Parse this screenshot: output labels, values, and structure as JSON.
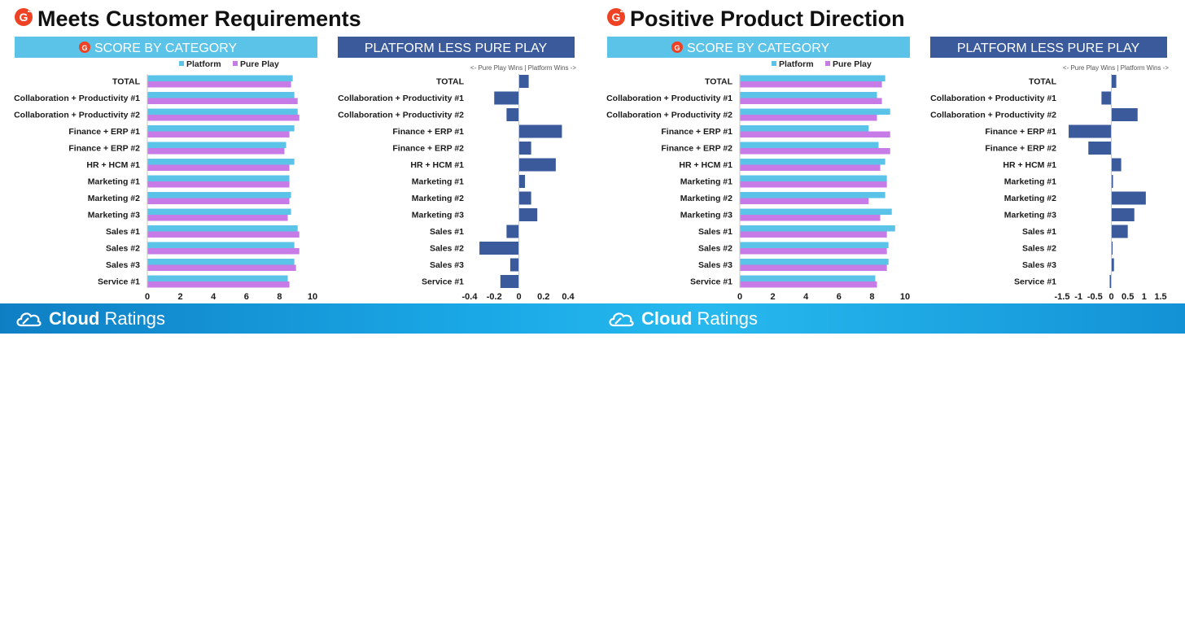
{
  "footer": {
    "brand_bold": "Cloud",
    "brand_rest": " Ratings"
  },
  "colors": {
    "platform": "#5bc3e8",
    "pure_play": "#c77be6",
    "diff": "#3a5a9c",
    "score_header": "#5bc3e8",
    "diff_header": "#3a5a9c",
    "logo": "#ef4123"
  },
  "panels": [
    {
      "title": "Meets Customer Requirements",
      "logo_glyph": "G",
      "logo_sup": "2",
      "score_header": "SCORE BY CATEGORY",
      "diff_header": "PLATFORM LESS PURE PLAY",
      "diff_note": "<- Pure Play Wins | Platform Wins ->"
    },
    {
      "title": "Positive Product Direction",
      "logo_glyph": "G",
      "logo_sup": "2",
      "score_header": "SCORE BY CATEGORY",
      "diff_header": "PLATFORM LESS PURE PLAY",
      "diff_note": "<- Pure Play Wins | Platform Wins ->"
    }
  ],
  "chart_data": [
    {
      "type": "bar",
      "title": "SCORE BY CATEGORY",
      "panel": "Meets Customer Requirements",
      "orientation": "horizontal",
      "categories": [
        "TOTAL",
        "Collaboration + Productivity #1",
        "Collaboration + Productivity #2",
        "Finance + ERP #1",
        "Finance + ERP #2",
        "HR + HCM #1",
        "Marketing #1",
        "Marketing #2",
        "Marketing #3",
        "Sales #1",
        "Sales #2",
        "Sales #3",
        "Service #1"
      ],
      "series": [
        {
          "name": "Platform",
          "values": [
            8.8,
            8.9,
            9.1,
            8.9,
            8.4,
            8.9,
            8.6,
            8.7,
            8.7,
            9.1,
            8.9,
            8.9,
            8.5
          ]
        },
        {
          "name": "Pure Play",
          "values": [
            8.7,
            9.1,
            9.2,
            8.6,
            8.3,
            8.6,
            8.6,
            8.6,
            8.5,
            9.2,
            9.2,
            9.0,
            8.6
          ]
        }
      ],
      "xlim": [
        0,
        10
      ],
      "xticks": [
        "0",
        "2",
        "4",
        "6",
        "8",
        "10"
      ],
      "legend": "top"
    },
    {
      "type": "bar",
      "title": "PLATFORM LESS PURE PLAY",
      "panel": "Meets Customer Requirements",
      "orientation": "horizontal",
      "categories": [
        "TOTAL",
        "Collaboration + Productivity #1",
        "Collaboration + Productivity #2",
        "Finance + ERP #1",
        "Finance + ERP #2",
        "HR + HCM #1",
        "Marketing #1",
        "Marketing #2",
        "Marketing #3",
        "Sales #1",
        "Sales #2",
        "Sales #3",
        "Service #1"
      ],
      "values": [
        0.08,
        -0.2,
        -0.1,
        0.35,
        0.1,
        0.3,
        0.05,
        0.1,
        0.15,
        -0.1,
        -0.32,
        -0.07,
        -0.15
      ],
      "xlim": [
        -0.4,
        0.4
      ],
      "xticks": [
        "-0.4",
        "-0.2",
        "0",
        "0.2",
        "0.4"
      ]
    },
    {
      "type": "bar",
      "title": "SCORE BY CATEGORY",
      "panel": "Positive Product Direction",
      "orientation": "horizontal",
      "categories": [
        "TOTAL",
        "Collaboration + Productivity #1",
        "Collaboration + Productivity #2",
        "Finance + ERP #1",
        "Finance + ERP #2",
        "HR + HCM #1",
        "Marketing #1",
        "Marketing #2",
        "Marketing #3",
        "Sales #1",
        "Sales #2",
        "Sales #3",
        "Service #1"
      ],
      "series": [
        {
          "name": "Platform",
          "values": [
            8.8,
            8.3,
            9.1,
            7.8,
            8.4,
            8.8,
            8.9,
            8.8,
            9.2,
            9.4,
            9.0,
            9.0,
            8.2
          ]
        },
        {
          "name": "Pure Play",
          "values": [
            8.6,
            8.6,
            8.3,
            9.1,
            9.1,
            8.5,
            8.9,
            7.8,
            8.5,
            8.9,
            8.9,
            8.9,
            8.3
          ]
        }
      ],
      "xlim": [
        0,
        10
      ],
      "xticks": [
        "0",
        "2",
        "4",
        "6",
        "8",
        "10"
      ],
      "legend": "top"
    },
    {
      "type": "bar",
      "title": "PLATFORM LESS PURE PLAY",
      "panel": "Positive Product Direction",
      "orientation": "horizontal",
      "categories": [
        "TOTAL",
        "Collaboration + Productivity #1",
        "Collaboration + Productivity #2",
        "Finance + ERP #1",
        "Finance + ERP #2",
        "HR + HCM #1",
        "Marketing #1",
        "Marketing #2",
        "Marketing #3",
        "Sales #1",
        "Sales #2",
        "Sales #3",
        "Service #1"
      ],
      "values": [
        0.15,
        -0.3,
        0.8,
        -1.3,
        -0.7,
        0.3,
        0.05,
        1.05,
        0.7,
        0.5,
        0.02,
        0.08,
        -0.05
      ],
      "xlim": [
        -1.5,
        1.5
      ],
      "xticks": [
        "-1.5",
        "-1",
        "-0.5",
        "0",
        "0.5",
        "1",
        "1.5"
      ]
    }
  ]
}
